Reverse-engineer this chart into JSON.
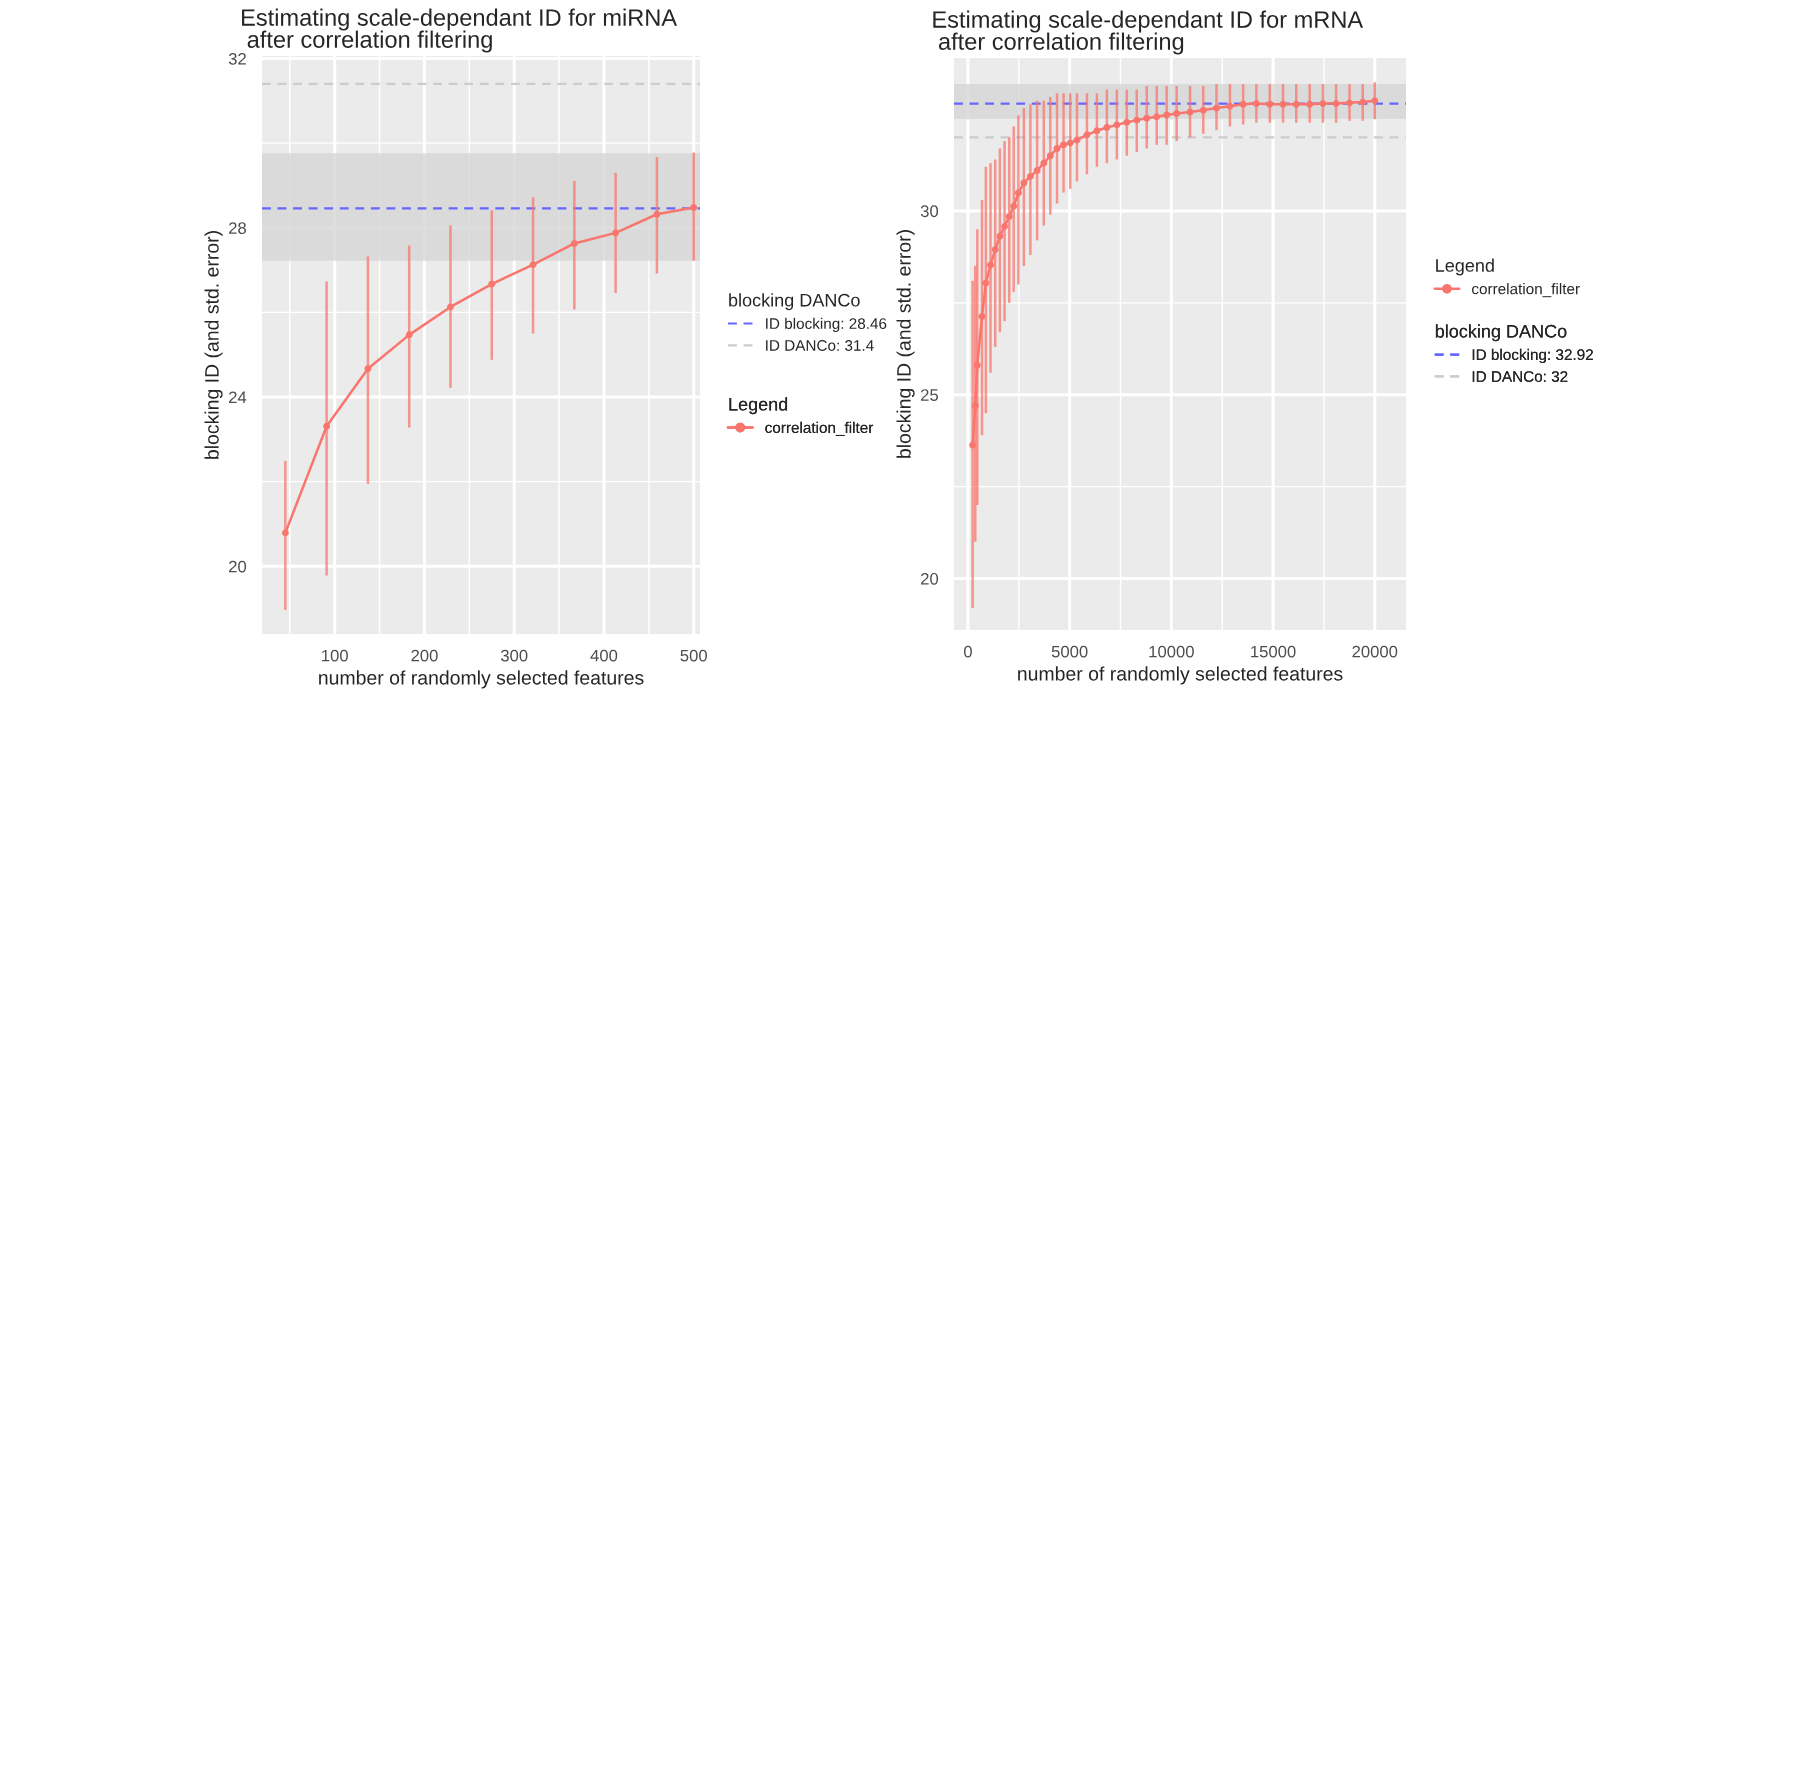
{
  "chart_data": [
    {
      "type": "line",
      "title": "Estimating scale-dependant ID for miRNA\n after correlation filtering",
      "xlabel": "number of randomly selected features",
      "ylabel": "blocking ID (and std. error)",
      "legend_title": "Legend",
      "annotations": [
        "blocking DANCo"
      ],
      "legend": "right",
      "grid": true,
      "marker": "circle",
      "line_style": "solid",
      "xlim": [
        19,
        507
      ],
      "xticks": [
        100,
        200,
        300,
        400,
        500
      ],
      "ylim": [
        18.4,
        32.06
      ],
      "yticks": [
        20,
        24,
        28,
        32
      ],
      "series": [
        {
          "name": "correlation_filter",
          "color": "#f8766d",
          "x": [
            45,
            91,
            137,
            183,
            229,
            275,
            321,
            367,
            413,
            459,
            500
          ],
          "values": [
            20.79,
            23.31,
            24.67,
            25.47,
            26.13,
            26.67,
            27.13,
            27.63,
            27.88,
            28.32,
            28.48
          ],
          "errors": [
            [
              18.97,
              22.49
            ],
            [
              19.78,
              26.73
            ],
            [
              21.95,
              27.32
            ],
            [
              23.28,
              27.58
            ],
            [
              24.22,
              28.06
            ],
            [
              24.88,
              28.41
            ],
            [
              25.5,
              28.72
            ],
            [
              26.07,
              29.11
            ],
            [
              26.46,
              29.3
            ],
            [
              26.92,
              29.67
            ],
            [
              27.22,
              29.78
            ]
          ]
        }
      ],
      "ref_lines": [
        {
          "axis": "y",
          "value": 28.46,
          "label": "ID blocking: 28.46",
          "color": "#6666ff",
          "line_style": "dashed"
        },
        {
          "axis": "y",
          "value": 31.4,
          "label": "ID DANCo: 31.4",
          "color": "#cccccc",
          "line_style": "dashed"
        }
      ],
      "bands": [
        {
          "axis": "y",
          "from": 27.22,
          "to": 29.76,
          "color": "#d6d6d6"
        }
      ]
    },
    {
      "type": "line",
      "title": "Estimating scale-dependant ID for mRNA\n after correlation filtering",
      "xlabel": "number of randomly selected features",
      "ylabel": "blocking ID (and std. error)",
      "legend_title": "Legend",
      "annotations": [
        "blocking DANCo"
      ],
      "legend": "top right",
      "grid": true,
      "marker": "circle",
      "line_style": "solid",
      "xlim": [
        -686,
        21536
      ],
      "xticks": [
        0,
        5000,
        10000,
        15000,
        20000
      ],
      "ylim": [
        18.6,
        34.16
      ],
      "yticks": [
        20,
        25,
        30
      ],
      "series": [
        {
          "name": "correlation_filter",
          "color": "#f8766d",
          "x": [
            230,
            360,
            460,
            690,
            880,
            1110,
            1340,
            1570,
            1800,
            2030,
            2250,
            2480,
            2750,
            3070,
            3400,
            3730,
            4050,
            4380,
            4700,
            5030,
            5360,
            5850,
            6340,
            6830,
            7320,
            7810,
            8300,
            8790,
            9280,
            9770,
            10260,
            10920,
            11570,
            12220,
            12880,
            13530,
            14180,
            14840,
            15490,
            16140,
            16800,
            17450,
            18100,
            18760,
            19410,
            20000
          ],
          "values": [
            23.63,
            24.7,
            25.8,
            27.13,
            28.04,
            28.53,
            28.95,
            29.31,
            29.58,
            29.85,
            30.13,
            30.49,
            30.76,
            30.94,
            31.1,
            31.3,
            31.5,
            31.7,
            31.8,
            31.85,
            31.93,
            32.07,
            32.18,
            32.27,
            32.34,
            32.41,
            32.47,
            32.52,
            32.56,
            32.61,
            32.65,
            32.69,
            32.74,
            32.8,
            32.85,
            32.9,
            32.92,
            32.9,
            32.9,
            32.9,
            32.9,
            32.92,
            32.92,
            32.94,
            32.96,
            33.0
          ],
          "errors": [
            [
              19.2,
              28.1
            ],
            [
              21.0,
              28.5
            ],
            [
              22.0,
              29.5
            ],
            [
              23.9,
              30.3
            ],
            [
              24.5,
              31.2
            ],
            [
              25.6,
              31.3
            ],
            [
              26.3,
              31.4
            ],
            [
              26.7,
              31.7
            ],
            [
              27.0,
              31.9
            ],
            [
              27.5,
              32.0
            ],
            [
              27.8,
              32.3
            ],
            [
              28.0,
              32.6
            ],
            [
              28.5,
              32.8
            ],
            [
              28.8,
              32.9
            ],
            [
              29.2,
              33.0
            ],
            [
              29.6,
              33.0
            ],
            [
              29.9,
              33.1
            ],
            [
              30.2,
              33.2
            ],
            [
              30.5,
              33.2
            ],
            [
              30.6,
              33.2
            ],
            [
              30.8,
              33.2
            ],
            [
              31.0,
              33.2
            ],
            [
              31.2,
              33.2
            ],
            [
              31.3,
              33.3
            ],
            [
              31.4,
              33.3
            ],
            [
              31.5,
              33.3
            ],
            [
              31.6,
              33.3
            ],
            [
              31.7,
              33.4
            ],
            [
              31.8,
              33.4
            ],
            [
              31.8,
              33.4
            ],
            [
              31.9,
              33.4
            ],
            [
              32.0,
              33.4
            ],
            [
              32.1,
              33.4
            ],
            [
              32.2,
              33.45
            ],
            [
              32.3,
              33.45
            ],
            [
              32.35,
              33.45
            ],
            [
              32.4,
              33.45
            ],
            [
              32.4,
              33.45
            ],
            [
              32.4,
              33.45
            ],
            [
              32.4,
              33.45
            ],
            [
              32.4,
              33.45
            ],
            [
              32.4,
              33.45
            ],
            [
              32.4,
              33.45
            ],
            [
              32.45,
              33.45
            ],
            [
              32.45,
              33.45
            ],
            [
              32.5,
              33.5
            ]
          ]
        }
      ],
      "ref_lines": [
        {
          "axis": "y",
          "value": 32.92,
          "label": "ID blocking: 32.92",
          "color": "#6666ff",
          "line_style": "dashed"
        },
        {
          "axis": "y",
          "value": 32,
          "label": "ID DANCo: 32",
          "color": "#cccccc",
          "line_style": "dashed"
        }
      ],
      "bands": [
        {
          "axis": "y",
          "from": 32.49,
          "to": 33.45,
          "color": "#d6d6d6"
        }
      ]
    }
  ]
}
